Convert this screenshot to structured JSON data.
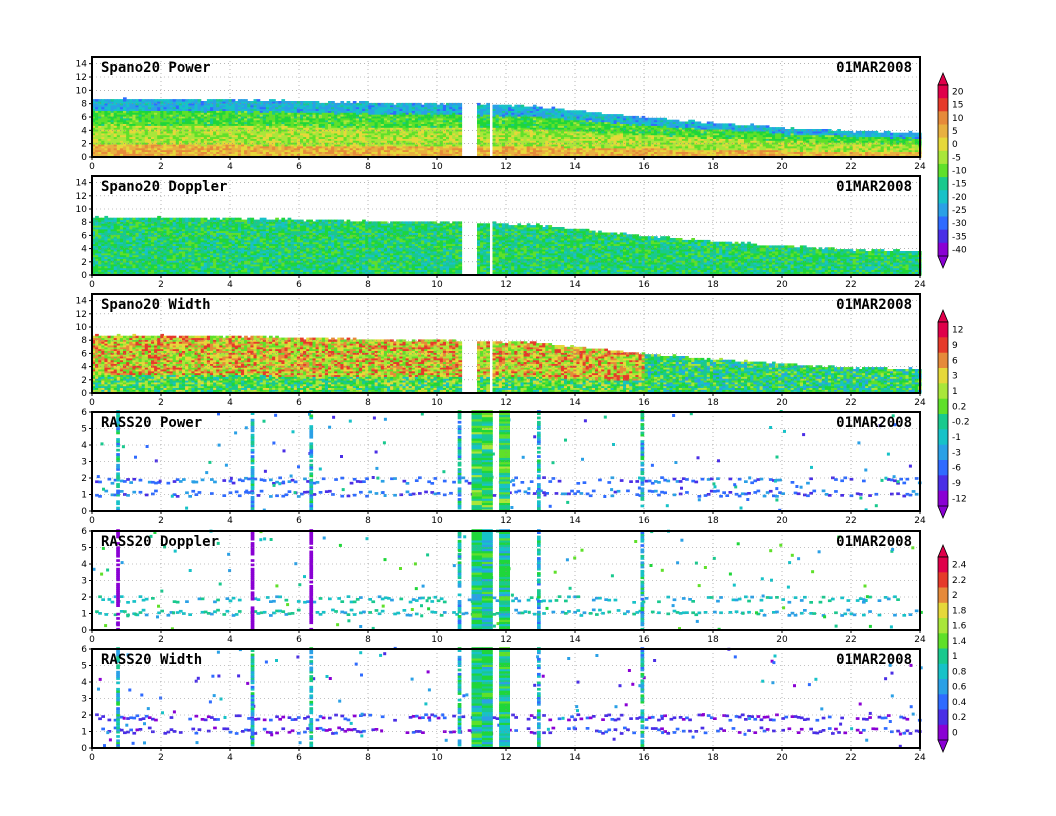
{
  "date_label": "01MAR2008",
  "colors": {
    "power_doppler_scale": [
      "#8a00d4",
      "#4a2ee6",
      "#2f6bff",
      "#2aa0e6",
      "#17c2c8",
      "#19c98e",
      "#1fd63a",
      "#5fe02a",
      "#a9e63a",
      "#e6d83a",
      "#e8b040",
      "#e68a3a",
      "#e63a2a",
      "#e0004a"
    ],
    "width_scale": [
      "#8a00d4",
      "#4a2ee6",
      "#2f6bff",
      "#2aa0e6",
      "#17c2c8",
      "#19c98e",
      "#1fd63a",
      "#5fe02a",
      "#a9e63a",
      "#e6d83a",
      "#e68a3a",
      "#e63a2a",
      "#e0004a"
    ]
  },
  "colorbars": [
    {
      "id": "cb-power",
      "labels": [
        "20",
        "15",
        "10",
        "5",
        "0",
        "-5",
        "-10",
        "-15",
        "-20",
        "-25",
        "-30",
        "-35",
        "-40"
      ]
    },
    {
      "id": "cb-width",
      "labels": [
        "12",
        "9",
        "6",
        "3",
        "1",
        "0.2",
        "-0.2",
        "-1",
        "-3",
        "-6",
        "-9",
        "-12"
      ]
    },
    {
      "id": "cb-rass",
      "labels": [
        "2.4",
        "2.2",
        "2",
        "1.8",
        "1.6",
        "1.4",
        "1",
        "0.8",
        "0.6",
        "0.4",
        "0.2",
        "0"
      ]
    }
  ],
  "chart_data": [
    {
      "type": "heatmap",
      "title": "Spano20 Power",
      "date": "01MAR2008",
      "xlim": [
        0,
        24
      ],
      "ylim": [
        0,
        15
      ],
      "xticks": [
        "0",
        "2",
        "4",
        "6",
        "8",
        "10",
        "12",
        "14",
        "16",
        "18",
        "20",
        "22",
        "24"
      ],
      "yticks": [
        "0",
        "2",
        "4",
        "6",
        "8",
        "10",
        "12",
        "14"
      ],
      "top_height_profile": {
        "x": [
          0,
          4,
          8,
          10.7,
          12.8,
          16,
          18,
          20,
          22,
          24
        ],
        "y": [
          8.6,
          8.5,
          8.0,
          7.9,
          7.5,
          5.8,
          5.0,
          4.3,
          3.7,
          3.5
        ]
      },
      "data_gaps_hours": [
        [
          10.7,
          11.1
        ],
        [
          11.45,
          11.55
        ]
      ]
    },
    {
      "type": "heatmap",
      "title": "Spano20 Doppler",
      "date": "01MAR2008",
      "xlim": [
        0,
        24
      ],
      "ylim": [
        0,
        15
      ],
      "xticks": [
        "0",
        "2",
        "4",
        "6",
        "8",
        "10",
        "12",
        "14",
        "16",
        "18",
        "20",
        "22",
        "24"
      ],
      "yticks": [
        "0",
        "2",
        "4",
        "6",
        "8",
        "10",
        "12",
        "14"
      ],
      "top_height_profile": {
        "x": [
          0,
          4,
          8,
          10.7,
          12.8,
          16,
          18,
          20,
          22,
          24
        ],
        "y": [
          8.6,
          8.5,
          8.0,
          7.9,
          7.5,
          5.8,
          5.0,
          4.3,
          3.7,
          3.5
        ]
      },
      "data_gaps_hours": [
        [
          10.7,
          11.1
        ],
        [
          11.45,
          11.55
        ]
      ]
    },
    {
      "type": "heatmap",
      "title": "Spano20 Width",
      "date": "01MAR2008",
      "xlim": [
        0,
        24
      ],
      "ylim": [
        0,
        15
      ],
      "xticks": [
        "0",
        "2",
        "4",
        "6",
        "8",
        "10",
        "12",
        "14",
        "16",
        "18",
        "20",
        "22",
        "24"
      ],
      "yticks": [
        "0",
        "2",
        "4",
        "6",
        "8",
        "10",
        "12",
        "14"
      ],
      "top_height_profile": {
        "x": [
          0,
          4,
          8,
          10.7,
          12.8,
          16,
          18,
          20,
          22,
          24
        ],
        "y": [
          8.6,
          8.5,
          8.0,
          7.9,
          7.5,
          5.8,
          5.0,
          4.3,
          3.7,
          3.5
        ]
      },
      "data_gaps_hours": [
        [
          10.7,
          11.1
        ],
        [
          11.45,
          11.55
        ]
      ]
    },
    {
      "type": "heatmap",
      "title": "RASS20 Power",
      "date": "01MAR2008",
      "xlim": [
        0,
        24
      ],
      "ylim": [
        0,
        6
      ],
      "xticks": [
        "0",
        "2",
        "4",
        "6",
        "8",
        "10",
        "12",
        "14",
        "16",
        "18",
        "20",
        "22",
        "24"
      ],
      "yticks": [
        "0",
        "1",
        "2",
        "3",
        "4",
        "5",
        "6"
      ],
      "bands_km": [
        1.0,
        1.8
      ],
      "vertical_streaks_hours": [
        0.7,
        4.6,
        6.3,
        10.6,
        11.0,
        11.3,
        11.8,
        12.9,
        15.9
      ]
    },
    {
      "type": "heatmap",
      "title": "RASS20 Doppler",
      "date": "01MAR2008",
      "xlim": [
        0,
        24
      ],
      "ylim": [
        0,
        6
      ],
      "xticks": [
        "0",
        "2",
        "4",
        "6",
        "8",
        "10",
        "12",
        "14",
        "16",
        "18",
        "20",
        "22",
        "24"
      ],
      "yticks": [
        "0",
        "1",
        "2",
        "3",
        "4",
        "5",
        "6"
      ],
      "bands_km": [
        1.0,
        1.8
      ],
      "vertical_streaks_hours": [
        0.7,
        4.6,
        6.3,
        10.6,
        11.0,
        11.3,
        11.8,
        12.9,
        15.9
      ]
    },
    {
      "type": "heatmap",
      "title": "RASS20 Width",
      "date": "01MAR2008",
      "xlim": [
        0,
        24
      ],
      "ylim": [
        0,
        6
      ],
      "xticks": [
        "0",
        "2",
        "4",
        "6",
        "8",
        "10",
        "12",
        "14",
        "16",
        "18",
        "20",
        "22",
        "24"
      ],
      "yticks": [
        "0",
        "1",
        "2",
        "3",
        "4",
        "5",
        "6"
      ],
      "bands_km": [
        1.0,
        1.8
      ],
      "vertical_streaks_hours": [
        0.7,
        4.6,
        6.3,
        10.6,
        11.0,
        11.3,
        11.8,
        12.9,
        15.9
      ]
    }
  ]
}
